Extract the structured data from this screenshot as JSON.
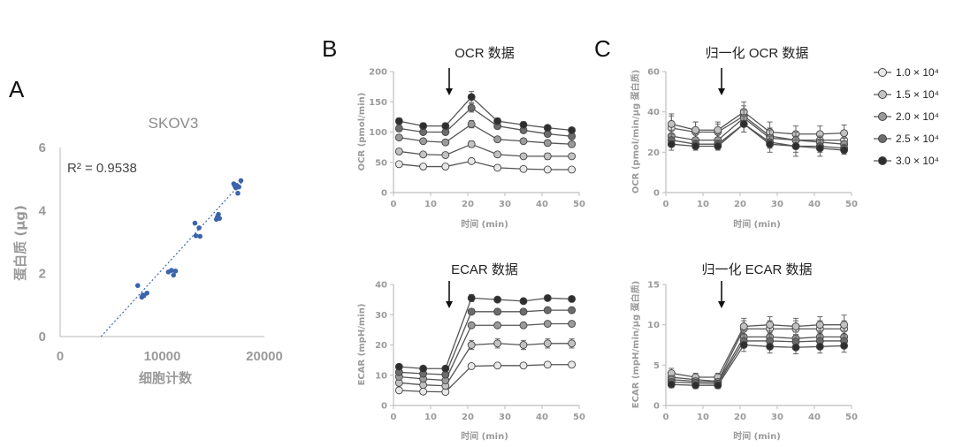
{
  "chart_data": [
    {
      "panel": "A",
      "type": "scatter",
      "title": "SKOV3",
      "xlabel": "细胞计数",
      "ylabel": "蛋白质 (μg)",
      "xlim": [
        0,
        20000
      ],
      "ylim": [
        0,
        6
      ],
      "xticks": [
        0,
        10000,
        20000
      ],
      "yticks": [
        0,
        2,
        4,
        6
      ],
      "annotation": "R² = 0.9538",
      "fit": {
        "x": [
          4000,
          17800
        ],
        "y": [
          0.0,
          4.9
        ]
      },
      "color": "#3b64ad",
      "points": [
        [
          7600,
          1.62
        ],
        [
          8000,
          1.25
        ],
        [
          8100,
          1.32
        ],
        [
          8200,
          1.3
        ],
        [
          8500,
          1.38
        ],
        [
          10600,
          2.05
        ],
        [
          10900,
          2.1
        ],
        [
          11100,
          1.95
        ],
        [
          11300,
          2.08
        ],
        [
          13200,
          3.6
        ],
        [
          13300,
          3.2
        ],
        [
          13600,
          3.45
        ],
        [
          13700,
          3.18
        ],
        [
          15300,
          3.72
        ],
        [
          15400,
          3.8
        ],
        [
          15500,
          3.88
        ],
        [
          15600,
          3.75
        ],
        [
          17000,
          4.85
        ],
        [
          17100,
          4.78
        ],
        [
          17200,
          4.72
        ],
        [
          17300,
          4.8
        ],
        [
          17400,
          4.55
        ],
        [
          17500,
          4.75
        ],
        [
          17700,
          4.95
        ]
      ]
    },
    {
      "panel": "B",
      "type": "line",
      "title": "OCR 数据",
      "xlabel": "时间 (min)",
      "ylabel": "OCR (pmol/min)",
      "xlim": [
        0,
        50
      ],
      "ylim": [
        0,
        200
      ],
      "xticks": [
        0,
        10,
        20,
        30,
        40,
        50
      ],
      "yticks": [
        0,
        50,
        100,
        150,
        200
      ],
      "arrow_x": 15,
      "x": [
        1.5,
        8,
        14,
        21,
        28,
        35,
        41.5,
        48
      ],
      "series": [
        {
          "name": "1.0 × 10⁴",
          "values": [
            47,
            43,
            43,
            52,
            41,
            39,
            38,
            38
          ],
          "err": [
            3,
            2,
            2,
            3,
            2,
            2,
            2,
            2
          ]
        },
        {
          "name": "1.5 × 10⁴",
          "values": [
            68,
            63,
            62,
            80,
            63,
            60,
            60,
            60
          ],
          "err": [
            4,
            3,
            3,
            5,
            4,
            3,
            5,
            3
          ]
        },
        {
          "name": "2.0 × 10⁴",
          "values": [
            91,
            85,
            83,
            113,
            88,
            85,
            82,
            80
          ],
          "err": [
            4,
            3,
            3,
            6,
            4,
            4,
            3,
            3
          ]
        },
        {
          "name": "2.5 × 10⁴",
          "values": [
            106,
            100,
            100,
            140,
            110,
            103,
            97,
            93
          ],
          "err": [
            5,
            4,
            4,
            7,
            5,
            4,
            4,
            4
          ]
        },
        {
          "name": "3.0 × 10⁴",
          "values": [
            118,
            110,
            110,
            158,
            118,
            112,
            107,
            103
          ],
          "err": [
            5,
            5,
            5,
            9,
            5,
            5,
            4,
            4
          ]
        }
      ]
    },
    {
      "panel": "B",
      "type": "line",
      "title": "ECAR 数据",
      "xlabel": "时间 (min)",
      "ylabel": "ECAR (mpH/min)",
      "xlim": [
        0,
        50
      ],
      "ylim": [
        0,
        40
      ],
      "xticks": [
        0,
        10,
        20,
        30,
        40,
        50
      ],
      "yticks": [
        0,
        10,
        20,
        30,
        40
      ],
      "arrow_x": 15,
      "x": [
        1.5,
        8,
        14,
        21,
        28,
        35,
        41.5,
        48
      ],
      "series": [
        {
          "name": "1.0 × 10⁴",
          "values": [
            5,
            4.6,
            4.5,
            13,
            13.2,
            13.2,
            13.5,
            13.5
          ],
          "err": [
            0.5,
            0.5,
            0.5,
            0.6,
            0.6,
            0.6,
            0.6,
            0.6
          ]
        },
        {
          "name": "1.5 × 10⁴",
          "values": [
            7.5,
            6.8,
            6.5,
            20,
            20.5,
            20,
            20.5,
            20.5
          ],
          "err": [
            0.6,
            0.6,
            0.6,
            1.5,
            1.5,
            1.5,
            1.5,
            1.5
          ]
        },
        {
          "name": "2.0 × 10⁴",
          "values": [
            9.5,
            8.8,
            8.3,
            26.5,
            26.5,
            26.5,
            27,
            27
          ],
          "err": [
            0.6,
            0.6,
            0.6,
            0.8,
            0.8,
            0.8,
            0.8,
            0.8
          ]
        },
        {
          "name": "2.5 × 10⁴",
          "values": [
            11,
            10.5,
            10.2,
            31,
            31,
            31,
            31.5,
            31.5
          ],
          "err": [
            0.6,
            0.6,
            0.6,
            0.8,
            0.8,
            0.8,
            0.8,
            0.8
          ]
        },
        {
          "name": "3.0 × 10⁴",
          "values": [
            12.8,
            12.2,
            12.2,
            35.5,
            35,
            34.5,
            35.5,
            35.2
          ],
          "err": [
            0.6,
            0.6,
            0.6,
            1.2,
            0.8,
            0.8,
            0.8,
            0.8
          ]
        }
      ]
    },
    {
      "panel": "C",
      "type": "line",
      "title": "归一化 OCR 数据",
      "xlabel": "时间 (min)",
      "ylabel": "OCR (pmol/min/μg 蛋白质)",
      "xlim": [
        0,
        50
      ],
      "ylim": [
        0,
        60
      ],
      "xticks": [
        0,
        10,
        20,
        30,
        40,
        50
      ],
      "yticks": [
        0,
        20,
        40,
        60
      ],
      "arrow_x": 15,
      "x": [
        1.5,
        8,
        14,
        21,
        28,
        35,
        41.5,
        48
      ],
      "series": [
        {
          "name": "1.0 × 10⁴",
          "values": [
            32,
            30,
            30,
            38,
            28,
            26,
            26,
            26
          ],
          "err": [
            6,
            5,
            4,
            5,
            4,
            4,
            4,
            4
          ]
        },
        {
          "name": "1.5 × 10⁴",
          "values": [
            34,
            31,
            31,
            40,
            30,
            29,
            29,
            29.5
          ],
          "err": [
            5,
            4,
            4,
            5,
            5,
            4,
            4,
            4
          ]
        },
        {
          "name": "2.0 × 10⁴",
          "values": [
            28,
            26,
            26,
            37,
            27,
            26,
            25,
            24
          ],
          "err": [
            3,
            3,
            3,
            4,
            4,
            4,
            3,
            3
          ]
        },
        {
          "name": "2.5 × 10⁴",
          "values": [
            26,
            24,
            24,
            34,
            25,
            23,
            23,
            22
          ],
          "err": [
            3,
            2,
            2,
            4,
            3,
            3,
            3,
            2
          ]
        },
        {
          "name": "3.0 × 10⁴",
          "values": [
            24,
            23,
            23,
            34,
            24,
            23,
            22,
            21
          ],
          "err": [
            3,
            2,
            2,
            4,
            4,
            5,
            4,
            2
          ]
        }
      ]
    },
    {
      "panel": "C",
      "type": "line",
      "title": "归一化 ECAR 数据",
      "xlabel": "时间 (min)",
      "ylabel": "ECAR (mpH/min/μg 蛋白质)",
      "xlim": [
        0,
        50
      ],
      "ylim": [
        0,
        15
      ],
      "xticks": [
        0,
        10,
        20,
        30,
        40,
        50
      ],
      "yticks": [
        0,
        5,
        10,
        15
      ],
      "arrow_x": 15,
      "x": [
        1.5,
        8,
        14,
        21,
        28,
        35,
        41.5,
        48
      ],
      "series": [
        {
          "name": "1.0 × 10⁴",
          "values": [
            3.5,
            3.2,
            3.0,
            9.5,
            9.5,
            9.5,
            9.5,
            9.5
          ],
          "err": [
            0.5,
            0.5,
            0.5,
            1,
            1,
            1,
            1,
            1
          ]
        },
        {
          "name": "1.5 × 10⁴",
          "values": [
            4.0,
            3.5,
            3.5,
            9.8,
            10,
            9.8,
            10,
            10
          ],
          "err": [
            0.6,
            0.5,
            0.5,
            1,
            1,
            1,
            1,
            1.2
          ]
        },
        {
          "name": "2.0 × 10⁴",
          "values": [
            3.2,
            3.0,
            2.9,
            8.5,
            8.5,
            8.3,
            8.5,
            8.5
          ],
          "err": [
            0.5,
            0.4,
            0.4,
            0.8,
            0.8,
            0.8,
            0.8,
            0.8
          ]
        },
        {
          "name": "2.5 × 10⁴",
          "values": [
            2.9,
            2.8,
            2.7,
            8.0,
            8.0,
            7.9,
            8.0,
            8.0
          ],
          "err": [
            0.4,
            0.4,
            0.4,
            0.8,
            0.8,
            0.8,
            0.8,
            0.8
          ]
        },
        {
          "name": "3.0 × 10⁴",
          "values": [
            2.6,
            2.5,
            2.5,
            7.5,
            7.3,
            7.2,
            7.3,
            7.4
          ],
          "err": [
            0.4,
            0.4,
            0.4,
            0.8,
            0.8,
            0.8,
            0.8,
            0.8
          ]
        }
      ]
    }
  ],
  "panel_labels": {
    "a": "A",
    "b": "B",
    "c": "C"
  },
  "legend": {
    "entries": [
      {
        "label": "1.0 × 10⁴",
        "color": "#e8e8e8"
      },
      {
        "label": "1.5 × 10⁴",
        "color": "#c2c2c2"
      },
      {
        "label": "2.0 × 10⁴",
        "color": "#9a9a9a"
      },
      {
        "label": "2.5 × 10⁴",
        "color": "#6c6c6c"
      },
      {
        "label": "3.0 × 10⁴",
        "color": "#2e2e2e"
      }
    ]
  }
}
